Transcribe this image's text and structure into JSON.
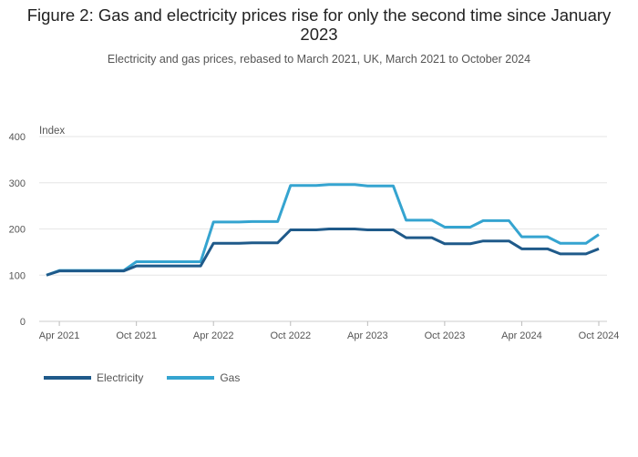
{
  "title": "Figure 2: Gas and electricity prices rise for only the second time since January 2023",
  "subtitle": "Electricity and gas prices, rebased to March 2021, UK, March 2021 to October 2024",
  "colors": {
    "electricity": "#1f5a8a",
    "gas": "#35a4d0",
    "grid": "#e6e6e6"
  },
  "chart_data": {
    "type": "line",
    "title": "Figure 2: Gas and electricity prices rise for only the second time since January 2023",
    "ylabel": "Index",
    "xlabel": "",
    "ylim": [
      0,
      400
    ],
    "yticks": [
      0,
      100,
      200,
      300,
      400
    ],
    "xticks": [
      {
        "label": "Apr 2021",
        "index": 1
      },
      {
        "label": "Oct 2021",
        "index": 7
      },
      {
        "label": "Apr 2022",
        "index": 13
      },
      {
        "label": "Oct 2022",
        "index": 19
      },
      {
        "label": "Apr 2023",
        "index": 25
      },
      {
        "label": "Oct 2023",
        "index": 31
      },
      {
        "label": "Apr 2024",
        "index": 37
      },
      {
        "label": "Oct 2024",
        "index": 43
      }
    ],
    "x": [
      "Mar 2021",
      "Apr 2021",
      "May 2021",
      "Jun 2021",
      "Jul 2021",
      "Aug 2021",
      "Sep 2021",
      "Oct 2021",
      "Nov 2021",
      "Dec 2021",
      "Jan 2022",
      "Feb 2022",
      "Mar 2022",
      "Apr 2022",
      "May 2022",
      "Jun 2022",
      "Jul 2022",
      "Aug 2022",
      "Sep 2022",
      "Oct 2022",
      "Nov 2022",
      "Dec 2022",
      "Jan 2023",
      "Feb 2023",
      "Mar 2023",
      "Apr 2023",
      "May 2023",
      "Jun 2023",
      "Jul 2023",
      "Aug 2023",
      "Sep 2023",
      "Oct 2023",
      "Nov 2023",
      "Dec 2023",
      "Jan 2024",
      "Feb 2024",
      "Mar 2024",
      "Apr 2024",
      "May 2024",
      "Jun 2024",
      "Jul 2024",
      "Aug 2024",
      "Sep 2024",
      "Oct 2024"
    ],
    "series": [
      {
        "name": "Electricity",
        "values": [
          100,
          109,
          109,
          109,
          109,
          109,
          109,
          120,
          120,
          120,
          120,
          120,
          120,
          169,
          169,
          169,
          170,
          170,
          170,
          198,
          198,
          198,
          200,
          200,
          200,
          198,
          198,
          198,
          181,
          181,
          181,
          168,
          168,
          168,
          174,
          174,
          174,
          157,
          157,
          157,
          146,
          146,
          146,
          157
        ]
      },
      {
        "name": "Gas",
        "values": [
          100,
          110,
          110,
          110,
          110,
          110,
          110,
          129,
          129,
          129,
          129,
          129,
          129,
          215,
          215,
          215,
          216,
          216,
          216,
          294,
          294,
          294,
          296,
          296,
          296,
          293,
          293,
          293,
          219,
          219,
          219,
          204,
          204,
          204,
          218,
          218,
          218,
          183,
          183,
          183,
          169,
          169,
          169,
          188
        ]
      }
    ],
    "legend": [
      "Electricity",
      "Gas"
    ],
    "legend_position": "bottom-left",
    "grid": true
  }
}
